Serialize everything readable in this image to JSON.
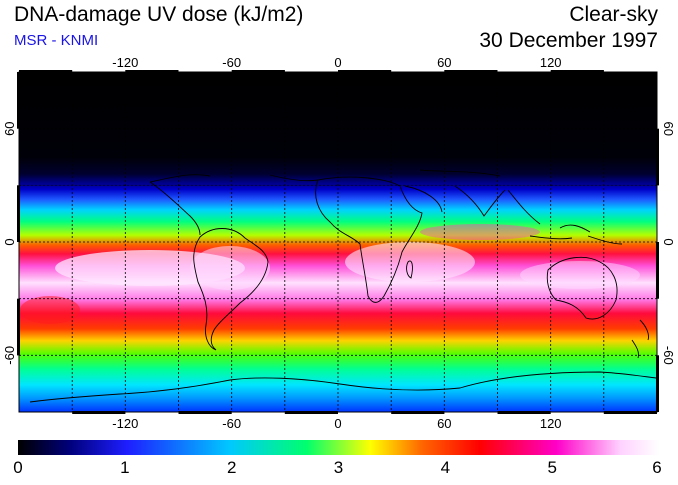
{
  "header": {
    "title": "DNA-damage UV dose (kJ/m2)",
    "source": "MSR - KNMI",
    "sky_condition": "Clear-sky",
    "date": "30 December 1997"
  },
  "map": {
    "longitude_ticks": [
      "-120",
      "-60",
      "0",
      "60",
      "120"
    ],
    "latitude_ticks_left": [
      "60",
      "0",
      "-60"
    ],
    "latitude_ticks_right": [
      "60",
      "0",
      "-60"
    ],
    "longitude_values": [
      -120,
      -60,
      0,
      60,
      120
    ],
    "latitude_values": [
      60,
      0,
      -60
    ],
    "lon_range": [
      -180,
      180
    ],
    "lat_range": [
      90,
      -90
    ]
  },
  "colorbar": {
    "labels": [
      "0",
      "1",
      "2",
      "3",
      "4",
      "5",
      "6"
    ],
    "min": 0,
    "max": 6,
    "colors": [
      "#000000",
      "#00007a",
      "#1e1eff",
      "#00c8ff",
      "#00ff6e",
      "#ffff00",
      "#ff6600",
      "#ff0000",
      "#ff00c8",
      "#ffd2ff",
      "#ffffff"
    ]
  }
}
